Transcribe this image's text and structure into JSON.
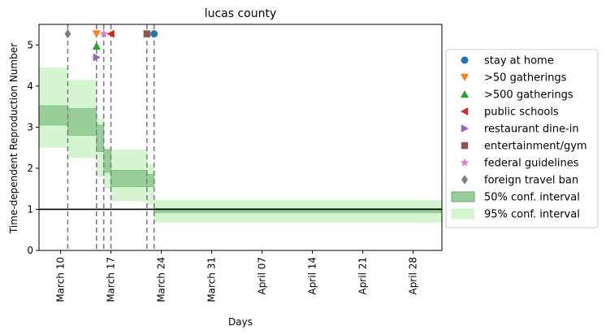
{
  "chart_data": {
    "type": "line",
    "title": "lucas county",
    "xlabel": "Days",
    "ylabel": "Time-dependent Reproduction Number",
    "xlim": [
      "2020-03-07",
      "2020-05-02"
    ],
    "ylim": [
      0,
      5.5
    ],
    "x_ticks": [
      {
        "date": "2020-03-10",
        "label": "March 10"
      },
      {
        "date": "2020-03-17",
        "label": "March 17"
      },
      {
        "date": "2020-03-24",
        "label": "March 24"
      },
      {
        "date": "2020-03-31",
        "label": "March 31"
      },
      {
        "date": "2020-04-07",
        "label": "April 07"
      },
      {
        "date": "2020-04-14",
        "label": "April 14"
      },
      {
        "date": "2020-04-21",
        "label": "April 21"
      },
      {
        "date": "2020-04-28",
        "label": "April 28"
      }
    ],
    "y_ticks": [
      0,
      1,
      2,
      3,
      4,
      5
    ],
    "reference_line": 1,
    "grid": false,
    "legend_position": "right-outside",
    "intervals": [
      {
        "start": "2020-03-07",
        "end": "2020-03-11",
        "ci50": [
          3.05,
          3.52
        ],
        "ci95": [
          2.5,
          4.45
        ]
      },
      {
        "start": "2020-03-11",
        "end": "2020-03-15",
        "ci50": [
          2.8,
          3.45
        ],
        "ci95": [
          2.25,
          4.15
        ]
      },
      {
        "start": "2020-03-15",
        "end": "2020-03-16",
        "ci50": [
          2.4,
          3.05
        ],
        "ci95": [
          1.8,
          3.2
        ]
      },
      {
        "start": "2020-03-16",
        "end": "2020-03-17",
        "ci50": [
          1.9,
          2.45
        ],
        "ci95": [
          1.5,
          2.5
        ]
      },
      {
        "start": "2020-03-17",
        "end": "2020-03-22",
        "ci50": [
          1.55,
          1.95
        ],
        "ci95": [
          1.2,
          2.45
        ]
      },
      {
        "start": "2020-03-22",
        "end": "2020-03-23",
        "ci50": [
          1.55,
          1.85
        ],
        "ci95": [
          1.1,
          2.1
        ]
      },
      {
        "start": "2020-03-23",
        "end": "2020-05-02",
        "ci50": [
          0.92,
          1.02
        ],
        "ci95": [
          0.68,
          1.22
        ]
      }
    ],
    "interventions": [
      {
        "name": "stay at home",
        "date": "2020-03-23",
        "y": 5.27,
        "marker": "circle",
        "color": "#1f77b4"
      },
      {
        "name": ">50 gatherings",
        "date": "2020-03-15",
        "y": 5.27,
        "marker": "triangle-down",
        "color": "#ff7f0e"
      },
      {
        "name": ">500 gatherings",
        "date": "2020-03-15",
        "y": 4.97,
        "marker": "triangle-up",
        "color": "#2ca02c"
      },
      {
        "name": "public schools",
        "date": "2020-03-17",
        "y": 5.27,
        "marker": "triangle-left",
        "color": "#d62728"
      },
      {
        "name": "restaurant dine-in",
        "date": "2020-03-15",
        "y": 4.7,
        "marker": "triangle-right",
        "color": "#9467bd"
      },
      {
        "name": "entertainment/gym",
        "date": "2020-03-22",
        "y": 5.27,
        "marker": "square",
        "color": "#8c564b"
      },
      {
        "name": "federal guidelines",
        "date": "2020-03-16",
        "y": 5.27,
        "marker": "star",
        "color": "#e377c2"
      },
      {
        "name": "foreign travel ban",
        "date": "2020-03-11",
        "y": 5.27,
        "marker": "diamond",
        "color": "#7f7f7f"
      }
    ],
    "legend": [
      {
        "label": "stay at home",
        "marker": "circle",
        "color": "#1f77b4"
      },
      {
        "label": ">50 gatherings",
        "marker": "triangle-down",
        "color": "#ff7f0e"
      },
      {
        "label": ">500 gatherings",
        "marker": "triangle-up",
        "color": "#2ca02c"
      },
      {
        "label": "public schools",
        "marker": "triangle-left",
        "color": "#d62728"
      },
      {
        "label": "restaurant dine-in",
        "marker": "triangle-right",
        "color": "#9467bd"
      },
      {
        "label": "entertainment/gym",
        "marker": "square",
        "color": "#8c564b"
      },
      {
        "label": "federal guidelines",
        "marker": "star",
        "color": "#e377c2"
      },
      {
        "label": "foreign travel ban",
        "marker": "diamond",
        "color": "#7f7f7f"
      },
      {
        "label": "50% conf. interval",
        "marker": "patch",
        "color": "#98cf98"
      },
      {
        "label": "95% conf. interval",
        "marker": "patch",
        "color": "#d5f5d1"
      }
    ],
    "colors": {
      "ci50": "#98cf98",
      "ci95": "#d5f5d1",
      "vline": "#7f7f7f",
      "reference": "#000000"
    }
  }
}
